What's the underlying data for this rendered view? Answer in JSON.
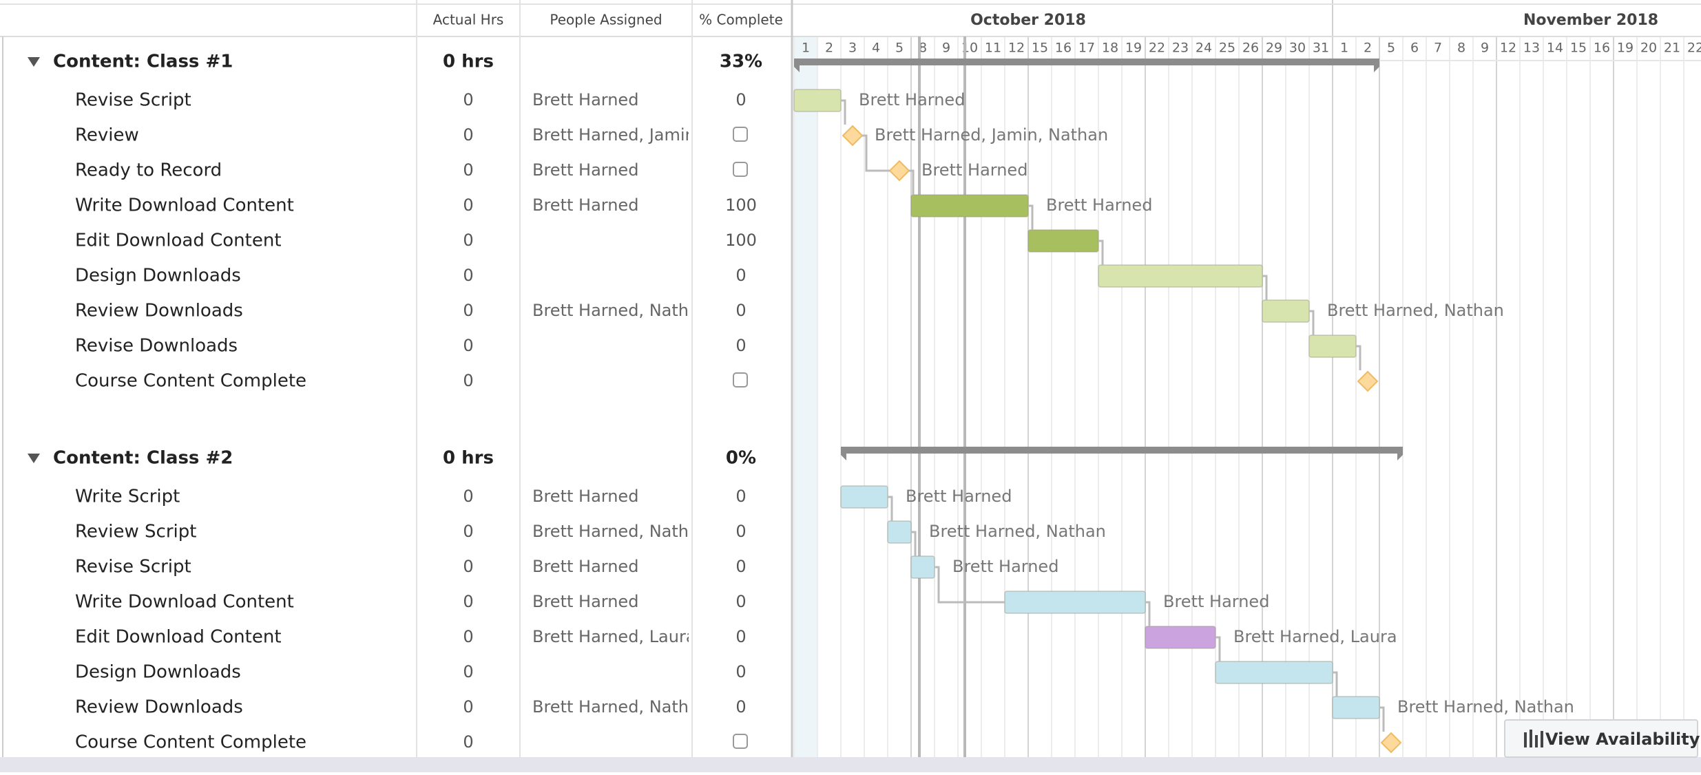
{
  "header": {
    "columns": [
      "Actual Hrs",
      "People Assigned",
      "% Complete"
    ]
  },
  "timeline": {
    "months": [
      "October 2018",
      "November 2018"
    ],
    "days": [
      1,
      2,
      3,
      4,
      5,
      8,
      9,
      10,
      11,
      12,
      15,
      16,
      17,
      18,
      19,
      22,
      23,
      24,
      25,
      26,
      29,
      30,
      31,
      1,
      2,
      5,
      6,
      7,
      8,
      9,
      12,
      13,
      14,
      15,
      16,
      19,
      20,
      21,
      22
    ]
  },
  "groups": [
    {
      "name": "Content: Class #1",
      "hours": "0 hrs",
      "complete": "33%",
      "start": 0,
      "end": 25,
      "tasks": [
        {
          "name": "Revise Script",
          "hours": "0",
          "people": "Brett Harned",
          "complete": "0",
          "start": 0,
          "end": 2,
          "color": "#d7e4ad"
        },
        {
          "name": "Review",
          "hours": "0",
          "people": "Brett Harned, Jamin, Nathan",
          "milestone": true,
          "start": 2
        },
        {
          "name": "Ready to Record",
          "hours": "0",
          "people": "Brett Harned",
          "milestone": true,
          "start": 4
        },
        {
          "name": "Write Download Content",
          "hours": "0",
          "people": "Brett Harned",
          "complete": "100",
          "start": 5,
          "end": 10,
          "color": "#a7bf5e"
        },
        {
          "name": "Edit Download Content",
          "hours": "0",
          "complete": "100",
          "start": 10,
          "end": 13,
          "color": "#a7bf5e"
        },
        {
          "name": "Design Downloads",
          "hours": "0",
          "complete": "0",
          "start": 13,
          "end": 20,
          "color": "#d7e4ad"
        },
        {
          "name": "Review Downloads",
          "hours": "0",
          "people": "Brett Harned, Nathan",
          "complete": "0",
          "start": 20,
          "end": 22,
          "color": "#d7e4ad"
        },
        {
          "name": "Revise Downloads",
          "hours": "0",
          "complete": "0",
          "start": 22,
          "end": 24,
          "color": "#d7e4ad"
        },
        {
          "name": "Course Content Complete",
          "hours": "0",
          "milestone": true,
          "start": 24
        }
      ]
    },
    {
      "name": "Content: Class #2",
      "hours": "0 hrs",
      "complete": "0%",
      "start": 2,
      "end": 26,
      "tasks": [
        {
          "name": "Write Script",
          "hours": "0",
          "people": "Brett Harned",
          "complete": "0",
          "start": 2,
          "end": 4,
          "color": "#c4e4ee"
        },
        {
          "name": "Review Script",
          "hours": "0",
          "people": "Brett Harned, Nathan",
          "complete": "0",
          "start": 4,
          "end": 5,
          "color": "#c4e4ee"
        },
        {
          "name": "Revise Script",
          "hours": "0",
          "people": "Brett Harned",
          "complete": "0",
          "start": 5,
          "end": 6,
          "color": "#c4e4ee"
        },
        {
          "name": "Write Download Content",
          "hours": "0",
          "people": "Brett Harned",
          "complete": "0",
          "start": 9,
          "end": 15,
          "color": "#c4e4ee"
        },
        {
          "name": "Edit Download Content",
          "hours": "0",
          "people": "Brett Harned, Laura",
          "complete": "0",
          "start": 15,
          "end": 18,
          "color": "#cba3de"
        },
        {
          "name": "Design Downloads",
          "hours": "0",
          "complete": "0",
          "start": 18,
          "end": 23,
          "color": "#c4e4ee"
        },
        {
          "name": "Review Downloads",
          "hours": "0",
          "people": "Brett Harned, Nathan",
          "complete": "0",
          "start": 23,
          "end": 25,
          "color": "#c4e4ee"
        },
        {
          "name": "Course Content Complete",
          "hours": "0",
          "milestone": true,
          "start": 25
        }
      ]
    }
  ],
  "button": "View Availability"
}
